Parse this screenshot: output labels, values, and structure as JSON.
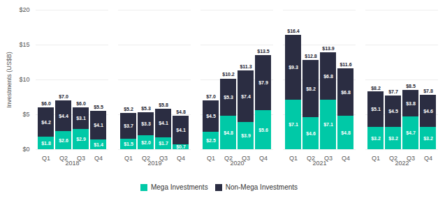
{
  "chart_data": {
    "type": "bar",
    "stacked": true,
    "data_labels": true,
    "grid": true,
    "legend": "bottom",
    "categories": [
      "Q1",
      "Q2",
      "Q3",
      "Q4",
      "Q1",
      "Q2",
      "Q3",
      "Q4",
      "Q1",
      "Q2",
      "Q3",
      "Q4",
      "Q1",
      "Q2",
      "Q3",
      "Q4",
      "Q1",
      "Q2",
      "Q3",
      "Q4"
    ],
    "years": [
      "2018",
      "2019",
      "2020",
      "2021",
      "2022"
    ],
    "series": [
      {
        "name": "Mega Investments",
        "color": "#00c9a7",
        "values": [
          1.8,
          2.6,
          2.9,
          1.4,
          1.5,
          2.0,
          1.7,
          0.7,
          2.5,
          4.8,
          3.9,
          5.6,
          7.1,
          4.6,
          7.1,
          4.8,
          3.2,
          3.2,
          4.7,
          3.2
        ],
        "value_labels": [
          "$1.8",
          "$2.6",
          "$2.9",
          "$1.4",
          "$1.5",
          "$2.0",
          "$1.7",
          "$0.7",
          "$2.5",
          "$4.8",
          "$3.9",
          "$5.6",
          "$7.1",
          "$4.6",
          "$7.1",
          "$4.8",
          "$3.2",
          "$3.2",
          "$4.7",
          "$3.2"
        ]
      },
      {
        "name": "Non-Mega Investments",
        "color": "#2b2d42",
        "values": [
          4.2,
          4.4,
          3.1,
          4.1,
          3.7,
          3.3,
          4.1,
          4.1,
          4.5,
          5.3,
          7.4,
          7.9,
          9.3,
          8.2,
          6.8,
          6.8,
          5.1,
          4.5,
          3.8,
          4.6
        ],
        "value_labels": [
          "$4.2",
          "$4.4",
          "$3.1",
          "$4.1",
          "$3.7",
          "$3.3",
          "$4.1",
          "$4.1",
          "$4.5",
          "$5.3",
          "$7.4",
          "$7.9",
          "$9.3",
          "$8.2",
          "$6.8",
          "$6.8",
          "$5.1",
          "$4.5",
          "$3.8",
          "$4.6"
        ]
      }
    ],
    "totals": [
      6.0,
      7.0,
      6.0,
      5.5,
      5.2,
      5.3,
      5.8,
      4.8,
      7.0,
      10.2,
      11.3,
      13.5,
      16.4,
      12.8,
      13.9,
      11.6,
      8.2,
      7.7,
      8.5,
      7.8
    ],
    "total_labels": [
      "$6.0",
      "$7.0",
      "$6.0",
      "$5.5",
      "$5.2",
      "$5.3",
      "$5.8",
      "$4.8",
      "$7.0",
      "$10.2",
      "$11.3",
      "$13.5",
      "$16.4",
      "$12.8",
      "$13.9",
      "$11.6",
      "$8.2",
      "$7.7",
      "$8.5",
      "$7.8"
    ],
    "ylabel": "Investments (US$B)",
    "ylim": [
      0,
      20
    ],
    "yticks": [
      {
        "value": 0,
        "label": "$0"
      },
      {
        "value": 5,
        "label": "$5"
      },
      {
        "value": 10,
        "label": "$10"
      },
      {
        "value": 15,
        "label": "$15"
      },
      {
        "value": 20,
        "label": "$20"
      }
    ]
  }
}
